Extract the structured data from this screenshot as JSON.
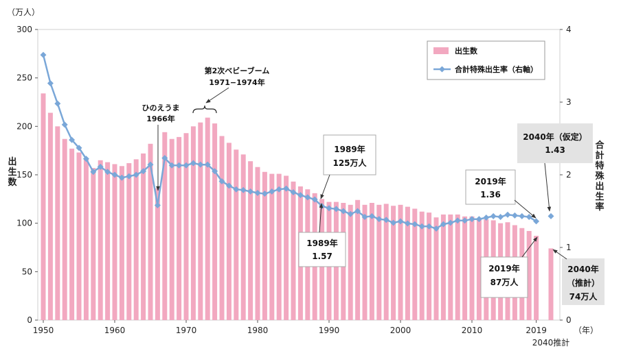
{
  "chart_data": {
    "type": "bar",
    "left_axis": {
      "unit": "（万人）",
      "title_chars": [
        "出",
        "生",
        "数"
      ],
      "ylim": [
        0,
        300
      ],
      "ticks": [
        "0",
        "50",
        "100",
        "150",
        "200",
        "250",
        "300"
      ]
    },
    "right_axis": {
      "title_chars": [
        "合",
        "計",
        "特",
        "殊",
        "出",
        "生",
        "率"
      ],
      "ylim": [
        0,
        4
      ],
      "ticks": [
        "0",
        "1",
        "2",
        "3",
        "4"
      ]
    },
    "x_axis": {
      "unit": "（年）",
      "ticks": [
        {
          "year": 1950,
          "label": "1950"
        },
        {
          "year": 1960,
          "label": "1960"
        },
        {
          "year": 1970,
          "label": "1970"
        },
        {
          "year": 1980,
          "label": "1980"
        },
        {
          "year": 1990,
          "label": "1990"
        },
        {
          "year": 2000,
          "label": "2000"
        },
        {
          "year": 2010,
          "label": "2010"
        },
        {
          "year": 2019,
          "label": "2019"
        }
      ],
      "extra_label": "2040推計"
    },
    "series": [
      {
        "name": "出生数",
        "kind": "bar",
        "color": "#f2a8c0",
        "x": [
          1950,
          1951,
          1952,
          1953,
          1954,
          1955,
          1956,
          1957,
          1958,
          1959,
          1960,
          1961,
          1962,
          1963,
          1964,
          1965,
          1966,
          1967,
          1968,
          1969,
          1970,
          1971,
          1972,
          1973,
          1974,
          1975,
          1976,
          1977,
          1978,
          1979,
          1980,
          1981,
          1982,
          1983,
          1984,
          1985,
          1986,
          1987,
          1988,
          1989,
          1990,
          1991,
          1992,
          1993,
          1994,
          1995,
          1996,
          1997,
          1998,
          1999,
          2000,
          2001,
          2002,
          2003,
          2004,
          2005,
          2006,
          2007,
          2008,
          2009,
          2010,
          2011,
          2012,
          2013,
          2014,
          2015,
          2016,
          2017,
          2018,
          2019,
          "2040推計"
        ],
        "values": [
          234,
          214,
          200,
          187,
          177,
          173,
          167,
          157,
          165,
          163,
          161,
          159,
          162,
          166,
          172,
          182,
          136,
          194,
          187,
          189,
          193,
          200,
          204,
          209,
          203,
          190,
          183,
          176,
          171,
          164,
          158,
          153,
          151,
          151,
          149,
          143,
          138,
          135,
          131,
          125,
          122,
          122,
          121,
          119,
          124,
          119,
          121,
          119,
          120,
          118,
          119,
          117,
          115,
          112,
          111,
          106,
          109,
          109,
          109,
          107,
          107,
          105,
          104,
          103,
          100,
          101,
          98,
          95,
          92,
          87,
          74
        ]
      },
      {
        "name": "合計特殊出生率（右軸）",
        "kind": "line",
        "color": "#7aa7d8",
        "x": [
          1950,
          1951,
          1952,
          1953,
          1954,
          1955,
          1956,
          1957,
          1958,
          1959,
          1960,
          1961,
          1962,
          1963,
          1964,
          1965,
          1966,
          1967,
          1968,
          1969,
          1970,
          1971,
          1972,
          1973,
          1974,
          1975,
          1976,
          1977,
          1978,
          1979,
          1980,
          1981,
          1982,
          1983,
          1984,
          1985,
          1986,
          1987,
          1988,
          1989,
          1990,
          1991,
          1992,
          1993,
          1994,
          1995,
          1996,
          1997,
          1998,
          1999,
          2000,
          2001,
          2002,
          2003,
          2004,
          2005,
          2006,
          2007,
          2008,
          2009,
          2010,
          2011,
          2012,
          2013,
          2014,
          2015,
          2016,
          2017,
          2018,
          2019,
          "2040推計"
        ],
        "values": [
          3.65,
          3.26,
          2.98,
          2.69,
          2.48,
          2.37,
          2.22,
          2.04,
          2.11,
          2.04,
          2.0,
          1.96,
          1.98,
          2.0,
          2.05,
          2.14,
          1.58,
          2.23,
          2.13,
          2.13,
          2.13,
          2.16,
          2.14,
          2.14,
          2.05,
          1.91,
          1.85,
          1.8,
          1.79,
          1.77,
          1.75,
          1.74,
          1.77,
          1.8,
          1.81,
          1.76,
          1.72,
          1.69,
          1.66,
          1.57,
          1.54,
          1.53,
          1.5,
          1.46,
          1.5,
          1.42,
          1.43,
          1.39,
          1.38,
          1.34,
          1.36,
          1.33,
          1.32,
          1.29,
          1.29,
          1.26,
          1.32,
          1.34,
          1.37,
          1.37,
          1.39,
          1.39,
          1.41,
          1.43,
          1.42,
          1.45,
          1.44,
          1.43,
          1.42,
          1.36,
          1.43
        ]
      }
    ],
    "annotations": {
      "hinoe": [
        "ひのえうま",
        "1966年"
      ],
      "boom": [
        "第2次ベビーブーム",
        "1971−1974年"
      ],
      "c1989_births": [
        "1989年",
        "125万人"
      ],
      "c1989_tfr": [
        "1989年",
        "1.57"
      ],
      "c2019_tfr": [
        "2019年",
        "1.36"
      ],
      "c2019_births": [
        "2019年",
        "87万人"
      ],
      "c2040_tfr": [
        "2040年（仮定）",
        "1.43"
      ],
      "c2040_births": [
        "2040年",
        "（推計）",
        "74万人"
      ]
    }
  }
}
